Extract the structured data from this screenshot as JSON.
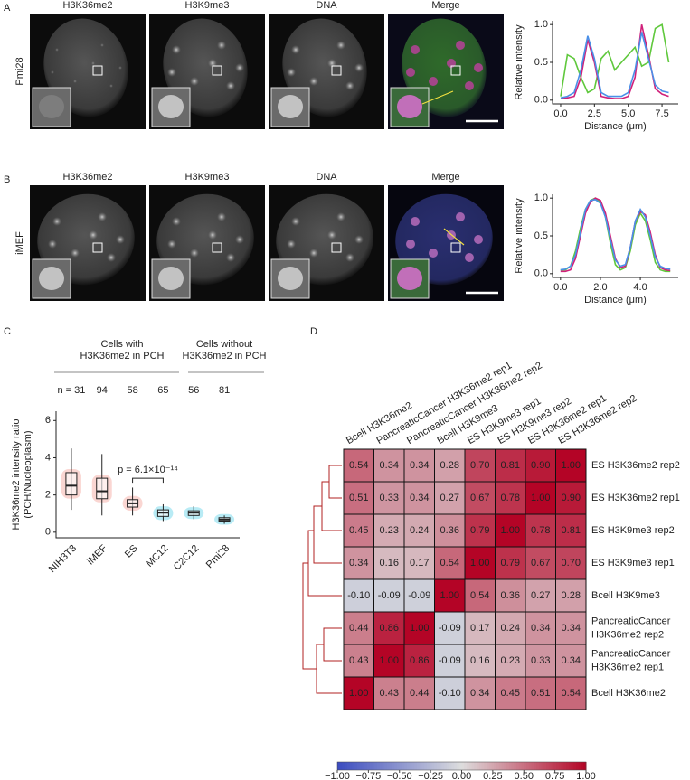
{
  "panels": {
    "A": {
      "letter": "A",
      "channels": [
        "H3K36me2",
        "H3K9me3",
        "DNA",
        "Merge"
      ],
      "cell_line": "Pmi28"
    },
    "B": {
      "letter": "B",
      "channels": [
        "H3K36me2",
        "H3K9me3",
        "DNA",
        "Merge"
      ],
      "cell_line": "iMEF"
    },
    "C": {
      "letter": "C",
      "groups": [
        [
          "Cells with",
          "H3K36me2 in PCH"
        ],
        [
          "Cells without",
          "H3K36me2 in PCH"
        ]
      ],
      "counts": [
        "n = 31",
        "94",
        "58",
        "65",
        "56",
        "81"
      ]
    },
    "D": {
      "letter": "D"
    }
  },
  "chart_data": [
    {
      "type": "line",
      "xlabel": "Distance (μm)",
      "ylabel": "Relative intensity",
      "x": [
        0,
        0.5,
        1,
        1.5,
        2,
        2.5,
        3,
        3.5,
        4,
        4.5,
        5,
        5.5,
        6,
        6.5,
        7,
        7.5,
        8
      ],
      "series": [
        {
          "color": "#5fc83c",
          "values": [
            0.05,
            0.6,
            0.55,
            0.3,
            0.1,
            0.15,
            0.55,
            0.65,
            0.4,
            0.5,
            0.6,
            0.7,
            0.45,
            0.5,
            0.95,
            1.0,
            0.5
          ]
        },
        {
          "color": "#d0207a",
          "values": [
            0.02,
            0.03,
            0.05,
            0.3,
            0.8,
            0.5,
            0.05,
            0.03,
            0.02,
            0.02,
            0.05,
            0.3,
            1.0,
            0.6,
            0.15,
            0.08,
            0.05
          ]
        },
        {
          "color": "#4a90e8",
          "values": [
            0.03,
            0.05,
            0.1,
            0.4,
            0.85,
            0.55,
            0.1,
            0.05,
            0.05,
            0.05,
            0.1,
            0.4,
            0.9,
            0.55,
            0.2,
            0.12,
            0.1
          ]
        }
      ],
      "xlim": [
        -0.6,
        8.7
      ],
      "ylim": [
        -0.05,
        1.05
      ],
      "xticks": [
        {
          "value": 0,
          "label": "0.0"
        },
        2.5,
        {
          "value": 5,
          "label": "5.0"
        },
        7.5
      ],
      "yticks": [
        {
          "value": 0,
          "label": "0.0"
        },
        0.5,
        {
          "value": 1,
          "label": "1.0"
        }
      ]
    },
    {
      "type": "line",
      "xlabel": "Distance (μm)",
      "ylabel": "Relative intensity",
      "x": [
        0,
        0.25,
        0.5,
        0.75,
        1,
        1.25,
        1.5,
        1.75,
        2,
        2.25,
        2.5,
        2.75,
        3,
        3.25,
        3.5,
        3.75,
        4,
        4.25,
        4.5,
        4.75,
        5,
        5.25,
        5.5
      ],
      "series": [
        {
          "color": "#5fc83c",
          "values": [
            0.05,
            0.05,
            0.1,
            0.3,
            0.6,
            0.85,
            0.97,
            1.0,
            0.95,
            0.75,
            0.4,
            0.12,
            0.05,
            0.08,
            0.3,
            0.65,
            0.8,
            0.7,
            0.45,
            0.15,
            0.05,
            0.03,
            0.03
          ]
        },
        {
          "color": "#d0207a",
          "values": [
            0.03,
            0.03,
            0.05,
            0.2,
            0.5,
            0.8,
            0.95,
            1.0,
            0.97,
            0.8,
            0.5,
            0.2,
            0.08,
            0.1,
            0.35,
            0.7,
            0.82,
            0.78,
            0.55,
            0.25,
            0.08,
            0.05,
            0.04
          ]
        },
        {
          "color": "#4a90e8",
          "values": [
            0.05,
            0.06,
            0.1,
            0.25,
            0.55,
            0.85,
            0.97,
            0.98,
            0.93,
            0.75,
            0.45,
            0.18,
            0.1,
            0.12,
            0.35,
            0.7,
            0.85,
            0.75,
            0.5,
            0.22,
            0.1,
            0.07,
            0.06
          ]
        }
      ],
      "xlim": [
        -0.4,
        5.9
      ],
      "ylim": [
        -0.05,
        1.05
      ],
      "xticks": [
        {
          "value": 0,
          "label": "0.0"
        },
        {
          "value": 2,
          "label": "2.0"
        },
        {
          "value": 4,
          "label": "4.0"
        }
      ],
      "yticks": [
        {
          "value": 0,
          "label": "0.0"
        },
        0.5,
        {
          "value": 1,
          "label": "1.0"
        }
      ]
    },
    {
      "type": "box",
      "ylabel": [
        "H3K36me2 intensity ratio",
        "(PCH/Nucleoplasm)"
      ],
      "categories": [
        "NIH3T3",
        "iMEF",
        "ES",
        "MC12",
        "C2C12",
        "Pmi28"
      ],
      "colors": [
        "#f4a39c",
        "#f4a39c",
        "#f4a39c",
        "#62d3e8",
        "#62d3e8",
        "#62d3e8"
      ],
      "stats": [
        {
          "low": 1.2,
          "q1": 2.0,
          "median": 2.5,
          "q3": 3.2,
          "high": 4.5
        },
        {
          "low": 0.9,
          "q1": 1.8,
          "median": 2.2,
          "q3": 2.9,
          "high": 4.2
        },
        {
          "low": 0.9,
          "q1": 1.35,
          "median": 1.55,
          "q3": 1.75,
          "high": 2.4
        },
        {
          "low": 0.6,
          "q1": 0.85,
          "median": 1.05,
          "q3": 1.2,
          "high": 1.5
        },
        {
          "low": 0.7,
          "q1": 0.9,
          "median": 1.05,
          "q3": 1.15,
          "high": 1.4
        },
        {
          "low": 0.45,
          "q1": 0.6,
          "median": 0.68,
          "q3": 0.78,
          "high": 0.9
        }
      ],
      "annotation": "p = 6.1×10⁻¹⁴",
      "ylim": [
        -0.3,
        6.5
      ],
      "yticks": [
        0,
        2,
        4,
        6
      ]
    },
    {
      "type": "heatmap",
      "columns": [
        "Bcell H3K36me2",
        "PancreaticCancer H3K36me2 rep1",
        "PancreaticCancer H3K36me2 rep2",
        "Bcell H3K9me3",
        "ES H3K9me3 rep1",
        "ES H3K9me3 rep2",
        "ES H3K36me2 rep1",
        "ES H3K36me2 rep2"
      ],
      "rows": [
        [
          "ES H3K36me2 rep2"
        ],
        [
          "ES H3K36me2 rep1"
        ],
        [
          "ES H3K9me3 rep2"
        ],
        [
          "ES H3K9me3 rep1"
        ],
        [
          "Bcell H3K9me3"
        ],
        [
          "PancreaticCancer",
          "H3K36me2 rep2"
        ],
        [
          "PancreaticCancer",
          "H3K36me2 rep1"
        ],
        [
          "Bcell H3K36me2"
        ]
      ],
      "values": [
        [
          0.54,
          0.34,
          0.34,
          0.28,
          0.7,
          0.81,
          0.9,
          1.0
        ],
        [
          0.51,
          0.33,
          0.34,
          0.27,
          0.67,
          0.78,
          1.0,
          0.9
        ],
        [
          0.45,
          0.23,
          0.24,
          0.36,
          0.79,
          1.0,
          0.78,
          0.81
        ],
        [
          0.34,
          0.16,
          0.17,
          0.54,
          1.0,
          0.79,
          0.67,
          0.7
        ],
        [
          -0.1,
          -0.09,
          -0.09,
          1.0,
          0.54,
          0.36,
          0.27,
          0.28
        ],
        [
          0.44,
          0.86,
          1.0,
          -0.09,
          0.17,
          0.24,
          0.34,
          0.34
        ],
        [
          0.43,
          1.0,
          0.86,
          -0.09,
          0.16,
          0.23,
          0.33,
          0.34
        ],
        [
          1.0,
          0.43,
          0.44,
          -0.1,
          0.34,
          0.45,
          0.51,
          0.54
        ]
      ],
      "value_labels": [
        [
          "0.54",
          "0.34",
          "0.34",
          "0.28",
          "0.70",
          "0.81",
          "0.90",
          "1.00"
        ],
        [
          "0.51",
          "0.33",
          "0.34",
          "0.27",
          "0.67",
          "0.78",
          "1.00",
          "0.90"
        ],
        [
          "0.45",
          "0.23",
          "0.24",
          "0.36",
          "0.79",
          "1.00",
          "0.78",
          "0.81"
        ],
        [
          "0.34",
          "0.16",
          "0.17",
          "0.54",
          "1.00",
          "0.79",
          "0.67",
          "0.70"
        ],
        [
          "-0.10",
          "-0.09",
          "-0.09",
          "1.00",
          "0.54",
          "0.36",
          "0.27",
          "0.28"
        ],
        [
          "0.44",
          "0.86",
          "1.00",
          "-0.09",
          "0.17",
          "0.24",
          "0.34",
          "0.34"
        ],
        [
          "0.43",
          "1.00",
          "0.86",
          "-0.09",
          "0.16",
          "0.23",
          "0.33",
          "0.34"
        ],
        [
          "1.00",
          "0.43",
          "0.44",
          "-0.10",
          "0.34",
          "0.45",
          "0.51",
          "0.54"
        ]
      ],
      "colormap": [
        "#3b4cc0",
        "#dddddd",
        "#b40426"
      ],
      "clim": [
        -1,
        1
      ],
      "cticks": [
        {
          "value": -1,
          "label": "−1.00"
        },
        {
          "value": -0.75,
          "label": "−0.75"
        },
        {
          "value": -0.5,
          "label": "−0.50"
        },
        {
          "value": -0.25,
          "label": "−0.25"
        },
        {
          "value": 0,
          "label": "0.00"
        },
        {
          "value": 0.25,
          "label": "0.25"
        },
        {
          "value": 0.5,
          "label": "0.50"
        },
        {
          "value": 0.75,
          "label": "0.75"
        },
        {
          "value": 1,
          "label": "1.00"
        }
      ]
    }
  ]
}
